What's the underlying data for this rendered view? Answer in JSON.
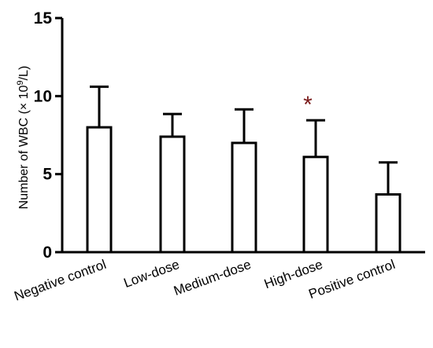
{
  "chart_data": {
    "type": "bar",
    "ylabel_prefix": "Number of WBC (× 10",
    "ylabel_exp": "9",
    "ylabel_suffix": "/L)",
    "categories": [
      "Negative control",
      "Low-dose",
      "Medium-dose",
      "High-dose",
      "Positive control"
    ],
    "values": [
      8.0,
      7.4,
      7.0,
      6.1,
      3.7
    ],
    "errors": [
      2.6,
      1.45,
      2.15,
      2.35,
      2.05
    ],
    "significance": [
      "",
      "",
      "",
      "*",
      ""
    ],
    "ylim": [
      0,
      15
    ],
    "yticks": [
      0,
      5,
      10,
      15
    ],
    "grid": false,
    "colors": {
      "bar_fill": "#ffffff",
      "bar_stroke": "#000000",
      "significance": "#7a1a1a"
    }
  }
}
